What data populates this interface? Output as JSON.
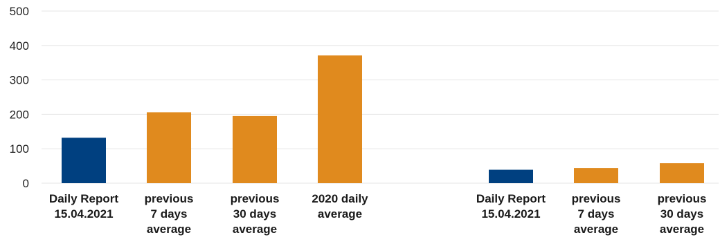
{
  "chart_data": {
    "type": "bar",
    "title": "",
    "xlabel": "",
    "ylabel": "",
    "ylim": [
      0,
      500
    ],
    "yticks": [
      0,
      100,
      200,
      300,
      400,
      500
    ],
    "grid": true,
    "colors": {
      "current": "#004080",
      "comparison": "#e08a1e"
    },
    "groups": [
      {
        "bars": [
          {
            "label": [
              "Daily Report",
              "15.04.2021"
            ],
            "value": 132,
            "kind": "current"
          },
          {
            "label": [
              "previous",
              "7 days",
              "average"
            ],
            "value": 206,
            "kind": "comparison"
          },
          {
            "label": [
              "previous",
              "30 days",
              "average"
            ],
            "value": 195,
            "kind": "comparison"
          },
          {
            "label": [
              "2020 daily",
              "average"
            ],
            "value": 371,
            "kind": "comparison"
          }
        ]
      },
      {
        "bars": [
          {
            "label": [
              "Daily Report",
              "15.04.2021"
            ],
            "value": 39,
            "kind": "current"
          },
          {
            "label": [
              "previous",
              "7 days",
              "average"
            ],
            "value": 44,
            "kind": "comparison"
          },
          {
            "label": [
              "previous",
              "30 days",
              "average"
            ],
            "value": 58,
            "kind": "comparison"
          }
        ]
      }
    ]
  }
}
